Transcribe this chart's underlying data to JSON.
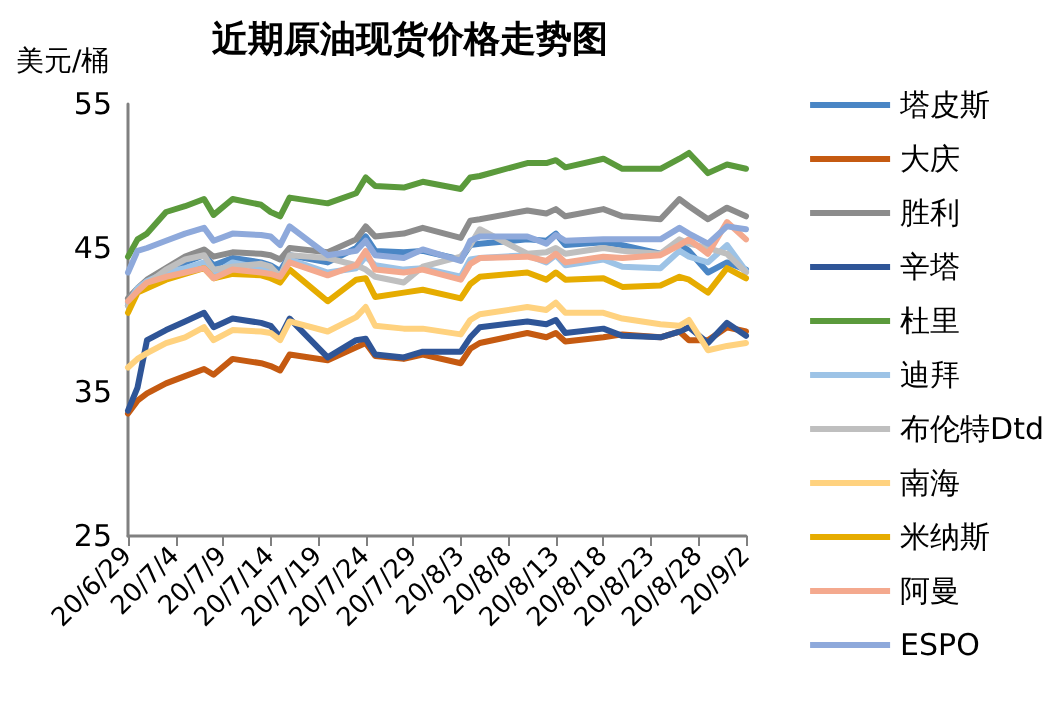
{
  "chart_data": {
    "type": "line",
    "title": "近期原油现货价格走势图",
    "ylabel": "美元/桶",
    "x": [
      "--06-29",
      "--06-30",
      "--07-01",
      "--07-03",
      "--07-05",
      "--07-07",
      "--07-08",
      "--07-10",
      "--07-13",
      "--07-14",
      "--07-15",
      "--07-16",
      "--07-20",
      "--07-23",
      "--07-24",
      "--07-25",
      "--07-28",
      "--07-30",
      "--08-03",
      "--08-04",
      "--08-05",
      "--08-10",
      "--08-12",
      "--08-13",
      "--08-14",
      "--08-18",
      "--08-20",
      "--08-24",
      "--08-26",
      "--08-27",
      "--08-29",
      "--08-31",
      "--09-02"
    ],
    "series": [
      {
        "name": "塔皮斯",
        "color": "#4a86c5",
        "values": [
          41.0,
          42.0,
          42.5,
          43.4,
          44.0,
          44.5,
          43.8,
          44.3,
          44.0,
          43.8,
          43.4,
          44.5,
          44.0,
          45.0,
          45.8,
          44.8,
          44.7,
          44.8,
          44.2,
          45.2,
          45.3,
          45.6,
          45.5,
          46.0,
          45.2,
          45.4,
          45.2,
          44.6,
          45.3,
          44.8,
          43.3,
          44.0,
          43.5
        ]
      },
      {
        "name": "大庆",
        "color": "#c55a11",
        "values": [
          33.5,
          34.4,
          34.9,
          35.6,
          36.1,
          36.6,
          36.2,
          37.3,
          37.0,
          36.8,
          36.5,
          37.6,
          37.2,
          38.1,
          38.4,
          37.5,
          37.3,
          37.6,
          37.0,
          38.0,
          38.4,
          39.1,
          38.8,
          39.1,
          38.5,
          38.8,
          39.0,
          38.8,
          39.2,
          38.6,
          38.6,
          39.5,
          39.2
        ]
      },
      {
        "name": "胜利",
        "color": "#8c8c8c",
        "values": [
          41.5,
          42.2,
          42.8,
          43.6,
          44.4,
          44.9,
          44.4,
          44.7,
          44.6,
          44.5,
          44.2,
          45.0,
          44.7,
          45.6,
          46.5,
          45.8,
          46.0,
          46.4,
          45.7,
          46.9,
          47.0,
          47.6,
          47.4,
          47.7,
          47.2,
          47.7,
          47.2,
          47.0,
          48.4,
          47.9,
          47.0,
          47.8,
          47.2
        ]
      },
      {
        "name": "辛塔",
        "color": "#2f5597",
        "values": [
          33.7,
          35.3,
          38.6,
          39.3,
          39.9,
          40.5,
          39.5,
          40.1,
          39.8,
          39.6,
          38.8,
          40.1,
          37.4,
          38.6,
          38.7,
          37.6,
          37.4,
          37.8,
          37.8,
          38.8,
          39.5,
          39.9,
          39.7,
          40.0,
          39.1,
          39.4,
          38.9,
          38.8,
          39.2,
          39.5,
          38.4,
          39.8,
          38.9
        ]
      },
      {
        "name": "杜里",
        "color": "#5b9a3c",
        "values": [
          44.4,
          45.6,
          46.0,
          47.5,
          47.9,
          48.4,
          47.3,
          48.4,
          48.0,
          47.5,
          47.2,
          48.5,
          48.1,
          48.8,
          49.9,
          49.3,
          49.2,
          49.6,
          49.1,
          49.9,
          50.0,
          50.9,
          50.9,
          51.1,
          50.6,
          51.2,
          50.5,
          50.5,
          51.2,
          51.6,
          50.2,
          50.8,
          50.5
        ]
      },
      {
        "name": "迪拜",
        "color": "#9dc3e6",
        "values": [
          41.2,
          42.2,
          42.7,
          43.3,
          43.6,
          44.0,
          43.2,
          44.0,
          43.6,
          43.4,
          43.0,
          44.2,
          43.3,
          43.6,
          44.4,
          43.8,
          43.5,
          43.6,
          43.0,
          44.2,
          44.3,
          44.5,
          44.0,
          44.5,
          43.8,
          44.2,
          43.7,
          43.6,
          44.8,
          44.4,
          44.0,
          45.2,
          43.4
        ]
      },
      {
        "name": "布伦特Dtd",
        "color": "#bfbfbf",
        "values": [
          41.0,
          42.0,
          42.5,
          43.5,
          44.2,
          44.5,
          43.5,
          43.7,
          43.9,
          43.7,
          43.0,
          44.5,
          44.3,
          43.8,
          43.5,
          43.0,
          42.6,
          43.7,
          44.4,
          45.2,
          46.3,
          44.6,
          44.7,
          45.0,
          44.6,
          45.0,
          44.8,
          44.6,
          45.6,
          45.3,
          45.0,
          44.6,
          43.3
        ]
      },
      {
        "name": "南海",
        "color": "#ffd27f",
        "values": [
          36.7,
          37.3,
          37.7,
          38.4,
          38.8,
          39.5,
          38.6,
          39.3,
          39.2,
          39.1,
          38.6,
          39.9,
          39.2,
          40.2,
          40.9,
          39.6,
          39.4,
          39.4,
          39.0,
          40.0,
          40.4,
          40.9,
          40.7,
          41.2,
          40.5,
          40.5,
          40.1,
          39.7,
          39.6,
          40.0,
          37.9,
          38.2,
          38.4
        ]
      },
      {
        "name": "米纳斯",
        "color": "#e6ac00",
        "values": [
          40.5,
          41.9,
          42.2,
          42.8,
          43.2,
          43.6,
          42.9,
          43.2,
          43.1,
          42.9,
          42.6,
          43.5,
          41.3,
          42.8,
          42.9,
          41.6,
          41.9,
          42.1,
          41.5,
          42.5,
          43.0,
          43.3,
          42.8,
          43.3,
          42.8,
          42.9,
          42.3,
          42.4,
          43.0,
          42.8,
          41.9,
          43.6,
          42.9
        ]
      },
      {
        "name": "阿曼",
        "color": "#f4a98e",
        "values": [
          41.3,
          42.0,
          42.6,
          43.0,
          43.3,
          43.6,
          42.9,
          43.5,
          43.3,
          43.2,
          43.0,
          44.0,
          43.1,
          43.8,
          44.8,
          43.5,
          43.3,
          43.5,
          42.8,
          43.9,
          44.3,
          44.4,
          44.1,
          44.6,
          44.0,
          44.4,
          44.3,
          44.5,
          45.2,
          45.6,
          44.6,
          46.8,
          45.6
        ]
      },
      {
        "name": "ESPO",
        "color": "#8ea9db",
        "values": [
          43.3,
          44.8,
          45.0,
          45.5,
          46.0,
          46.4,
          45.5,
          46.0,
          45.9,
          45.8,
          45.2,
          46.5,
          44.5,
          44.8,
          45.5,
          44.5,
          44.3,
          44.9,
          44.1,
          45.5,
          45.8,
          45.8,
          45.3,
          45.9,
          45.5,
          45.6,
          45.6,
          45.6,
          46.4,
          46.0,
          45.3,
          46.5,
          46.3
        ]
      }
    ],
    "xlim": [
      "--06-29",
      "--09-02"
    ],
    "xticks": [
      {
        "value": "--06-29",
        "label": "20/6/29"
      },
      {
        "value": "--07-04",
        "label": "20/7/4"
      },
      {
        "value": "--07-09",
        "label": "20/7/9"
      },
      {
        "value": "--07-14",
        "label": "20/7/14"
      },
      {
        "value": "--07-19",
        "label": "20/7/19"
      },
      {
        "value": "--07-24",
        "label": "20/7/24"
      },
      {
        "value": "--07-29",
        "label": "20/7/29"
      },
      {
        "value": "--08-03",
        "label": "20/8/3"
      },
      {
        "value": "--08-08",
        "label": "20/8/8"
      },
      {
        "value": "--08-13",
        "label": "20/8/13"
      },
      {
        "value": "--08-18",
        "label": "20/8/18"
      },
      {
        "value": "--08-23",
        "label": "20/8/23"
      },
      {
        "value": "--08-28",
        "label": "20/8/28"
      },
      {
        "value": "--09-02",
        "label": "20/9/2"
      }
    ],
    "ylim": [
      25,
      55
    ],
    "yticks": [
      25,
      35,
      45,
      55
    ],
    "grid": false,
    "legend": "right",
    "marker": "none",
    "line_style": "solid"
  }
}
